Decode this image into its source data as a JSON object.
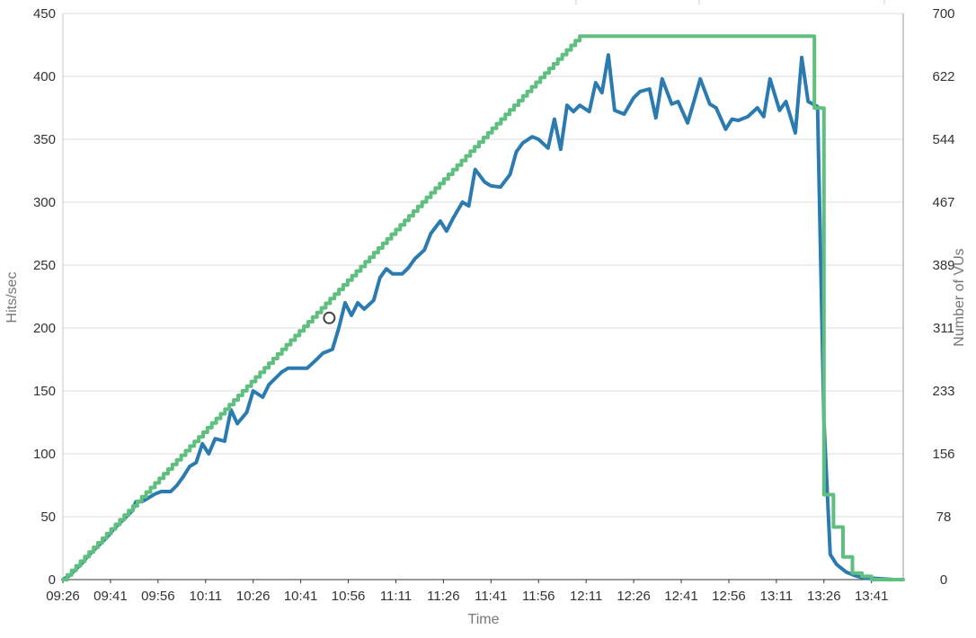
{
  "chart_data": {
    "type": "line",
    "xlabel": "Time",
    "ylabel_left": "Hits/sec",
    "ylabel_right": "Number of VUs",
    "x_tick_labels": [
      "09:26",
      "09:41",
      "09:56",
      "10:11",
      "10:26",
      "10:41",
      "10:56",
      "11:11",
      "11:26",
      "11:41",
      "11:56",
      "12:11",
      "12:26",
      "12:41",
      "12:56",
      "13:11",
      "13:26",
      "13:41"
    ],
    "y_left_ticks": [
      0,
      50,
      100,
      150,
      200,
      250,
      300,
      350,
      400,
      450
    ],
    "y_right_ticks": [
      0,
      78,
      156,
      233,
      311,
      389,
      467,
      544,
      622,
      700
    ],
    "ylim_left": [
      0,
      450
    ],
    "ylim_right": [
      0,
      700
    ],
    "xlim_minutes_from_first_tick": [
      0,
      265
    ],
    "grid": "horizontal",
    "series": [
      {
        "name": "",
        "axis": "left",
        "color": "#2b7bb0",
        "shape": "line",
        "points": [
          [
            0,
            0
          ],
          [
            2,
            3
          ],
          [
            4,
            8
          ],
          [
            6,
            13
          ],
          [
            8,
            19
          ],
          [
            10,
            24
          ],
          [
            12,
            29
          ],
          [
            14,
            34
          ],
          [
            16,
            40
          ],
          [
            18,
            45
          ],
          [
            20,
            50
          ],
          [
            22,
            55
          ],
          [
            23,
            62
          ],
          [
            25,
            62
          ],
          [
            27,
            65
          ],
          [
            29,
            68
          ],
          [
            31,
            70
          ],
          [
            34,
            70
          ],
          [
            36,
            75
          ],
          [
            38,
            82
          ],
          [
            40,
            90
          ],
          [
            42,
            93
          ],
          [
            44,
            108
          ],
          [
            46,
            100
          ],
          [
            48,
            112
          ],
          [
            51,
            110
          ],
          [
            53,
            135
          ],
          [
            55,
            124
          ],
          [
            58,
            133
          ],
          [
            60,
            150
          ],
          [
            63,
            145
          ],
          [
            65,
            155
          ],
          [
            67,
            160
          ],
          [
            69,
            165
          ],
          [
            71,
            168
          ],
          [
            74,
            168
          ],
          [
            77,
            168
          ],
          [
            80,
            175
          ],
          [
            82,
            180
          ],
          [
            85,
            183
          ],
          [
            87,
            200
          ],
          [
            89,
            220
          ],
          [
            91,
            210
          ],
          [
            93,
            220
          ],
          [
            95,
            215
          ],
          [
            98,
            222
          ],
          [
            100,
            240
          ],
          [
            102,
            247
          ],
          [
            104,
            243
          ],
          [
            107,
            243
          ],
          [
            109,
            248
          ],
          [
            111,
            255
          ],
          [
            114,
            262
          ],
          [
            116,
            275
          ],
          [
            119,
            285
          ],
          [
            121,
            277
          ],
          [
            123,
            287
          ],
          [
            126,
            300
          ],
          [
            128,
            297
          ],
          [
            130,
            326
          ],
          [
            133,
            316
          ],
          [
            135,
            313
          ],
          [
            138,
            312
          ],
          [
            141,
            322
          ],
          [
            143,
            340
          ],
          [
            145,
            347
          ],
          [
            148,
            352
          ],
          [
            150,
            350
          ],
          [
            153,
            343
          ],
          [
            155,
            366
          ],
          [
            157,
            342
          ],
          [
            159,
            377
          ],
          [
            161,
            372
          ],
          [
            163,
            377
          ],
          [
            166,
            372
          ],
          [
            168,
            395
          ],
          [
            170,
            387
          ],
          [
            172,
            417
          ],
          [
            174,
            373
          ],
          [
            177,
            370
          ],
          [
            180,
            383
          ],
          [
            182,
            388
          ],
          [
            185,
            390
          ],
          [
            187,
            367
          ],
          [
            189,
            398
          ],
          [
            192,
            378
          ],
          [
            194,
            380
          ],
          [
            197,
            363
          ],
          [
            199,
            380
          ],
          [
            201,
            398
          ],
          [
            204,
            378
          ],
          [
            206,
            375
          ],
          [
            209,
            358
          ],
          [
            211,
            366
          ],
          [
            213,
            365
          ],
          [
            216,
            368
          ],
          [
            219,
            375
          ],
          [
            221,
            368
          ],
          [
            223,
            398
          ],
          [
            226,
            373
          ],
          [
            228,
            380
          ],
          [
            231,
            355
          ],
          [
            233,
            415
          ],
          [
            235,
            380
          ],
          [
            238,
            376
          ],
          [
            240,
            126
          ],
          [
            242,
            20
          ],
          [
            244,
            12
          ],
          [
            247,
            6
          ],
          [
            250,
            3
          ],
          [
            253,
            1
          ],
          [
            256,
            1
          ],
          [
            262,
            0
          ]
        ]
      },
      {
        "name": "",
        "axis": "right",
        "color": "#5fbf7f",
        "shape": "step",
        "points": [
          [
            0,
            0
          ],
          [
            163,
            672
          ],
          [
            237,
            672
          ],
          [
            237,
            583
          ],
          [
            240,
            583
          ],
          [
            240,
            105
          ],
          [
            243,
            105
          ],
          [
            243,
            65
          ],
          [
            246,
            65
          ],
          [
            246,
            28
          ],
          [
            249,
            28
          ],
          [
            249,
            8
          ],
          [
            252,
            8
          ],
          [
            252,
            4
          ],
          [
            255,
            4
          ],
          [
            255,
            0
          ],
          [
            265,
            0
          ]
        ]
      }
    ],
    "annotations": [
      {
        "shape": "hollow-circle",
        "x": 84,
        "y": 208,
        "axis": "left"
      }
    ]
  }
}
